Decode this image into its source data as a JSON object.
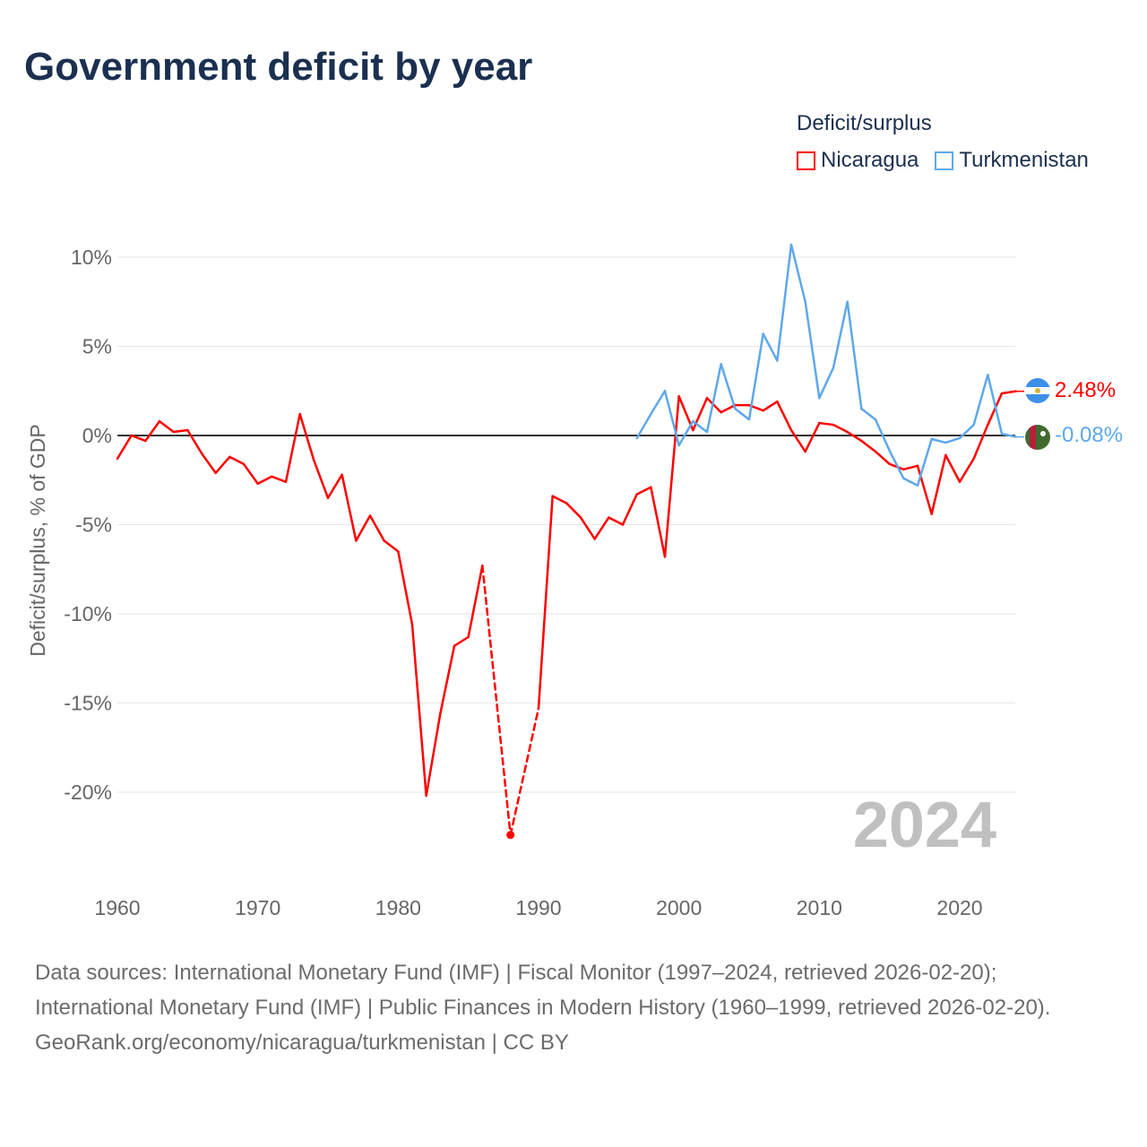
{
  "title": "Government deficit by year",
  "legend": {
    "title": "Deficit/surplus",
    "items": [
      {
        "label": "Nicaragua",
        "color": "#ff0000"
      },
      {
        "label": "Turkmenistan",
        "color": "#5ea8ea"
      }
    ]
  },
  "year_watermark": "2024",
  "end_labels": {
    "nicaragua": "2.48%",
    "turkmenistan": "-0.08%"
  },
  "footer": {
    "sources": "Data sources: International Monetary Fund (IMF) | Fiscal Monitor (1997–2024, retrieved 2026-02-20); International Monetary Fund (IMF) | Public Finances in Modern History (1960–1999, retrieved 2026-02-20).",
    "link": "GeoRank.org/economy/nicaragua/turkmenistan | CC BY"
  },
  "chart_data": {
    "type": "line",
    "title": "Government deficit by year",
    "xlabel": "",
    "ylabel": "Deficit/surplus, % of GDP",
    "xlim": [
      1960,
      2024
    ],
    "ylim": [
      -24,
      11
    ],
    "xticks": [
      1960,
      1970,
      1980,
      1990,
      2000,
      2010,
      2020
    ],
    "yticks": [
      10,
      5,
      0,
      -5,
      -10,
      -15,
      -20
    ],
    "ytick_labels": [
      "10%",
      "5%",
      "0%",
      "-5%",
      "-10%",
      "-15%",
      "-20%"
    ],
    "series": [
      {
        "name": "Nicaragua",
        "color": "#ff0000",
        "x": [
          1960,
          1961,
          1962,
          1963,
          1964,
          1965,
          1966,
          1967,
          1968,
          1969,
          1970,
          1971,
          1972,
          1973,
          1974,
          1975,
          1976,
          1977,
          1978,
          1979,
          1980,
          1981,
          1982,
          1983,
          1984,
          1985,
          1986,
          1988,
          1990,
          1991,
          1992,
          1993,
          1994,
          1995,
          1996,
          1997,
          1998,
          1999,
          2000,
          2001,
          2002,
          2003,
          2004,
          2005,
          2006,
          2007,
          2008,
          2009,
          2010,
          2011,
          2012,
          2013,
          2014,
          2015,
          2016,
          2017,
          2018,
          2019,
          2020,
          2021,
          2022,
          2023,
          2024
        ],
        "y": [
          -1.3,
          0,
          -0.3,
          0.8,
          0.2,
          0.3,
          -1.0,
          -2.1,
          -1.2,
          -1.6,
          -2.7,
          -2.3,
          -2.6,
          1.2,
          -1.4,
          -3.5,
          -2.2,
          -5.9,
          -4.5,
          -5.9,
          -6.5,
          -10.6,
          -20.2,
          -15.6,
          -11.8,
          -11.3,
          -7.3,
          -22.4,
          -15.3,
          -3.4,
          -3.8,
          -4.6,
          -5.8,
          -4.6,
          -5.0,
          -3.3,
          -2.9,
          -6.8,
          2.2,
          0.3,
          2.1,
          1.3,
          1.7,
          1.7,
          1.4,
          1.9,
          0.3,
          -0.9,
          0.7,
          0.6,
          0.2,
          -0.3,
          -0.9,
          -1.6,
          -1.9,
          -1.7,
          -4.4,
          -1.1,
          -2.6,
          -1.3,
          0.6,
          2.36,
          2.48
        ]
      },
      {
        "name": "Turkmenistan",
        "color": "#5ea8ea",
        "x": [
          1997,
          1998,
          1999,
          2000,
          2001,
          2002,
          2003,
          2004,
          2005,
          2006,
          2007,
          2008,
          2009,
          2010,
          2011,
          2012,
          2013,
          2014,
          2015,
          2016,
          2017,
          2018,
          2019,
          2020,
          2021,
          2022,
          2023,
          2024
        ],
        "y": [
          -0.15,
          1.2,
          2.5,
          -0.55,
          0.8,
          0.2,
          4.0,
          1.5,
          0.9,
          5.7,
          4.2,
          10.7,
          7.5,
          2.1,
          3.8,
          7.5,
          1.5,
          0.9,
          -0.85,
          -2.4,
          -2.8,
          -0.2,
          -0.4,
          -0.15,
          0.6,
          3.4,
          0.1,
          -0.08
        ]
      }
    ]
  }
}
